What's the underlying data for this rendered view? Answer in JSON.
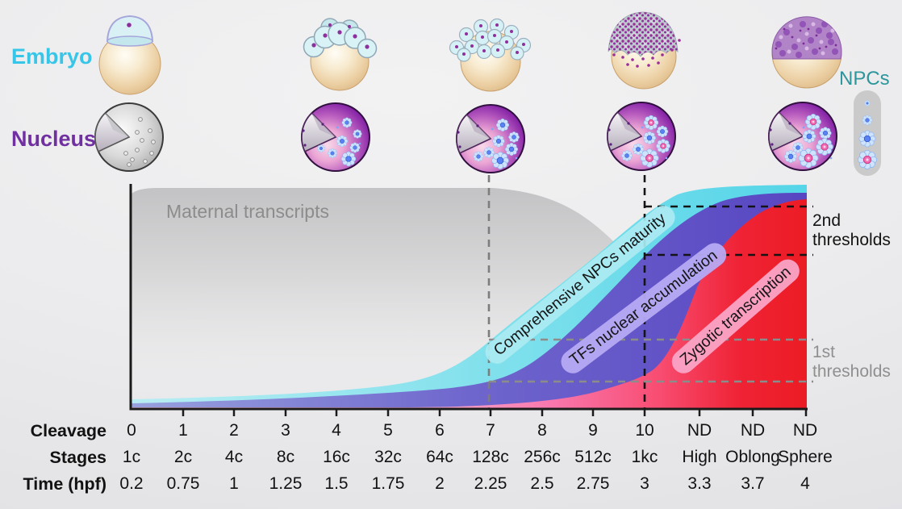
{
  "side_labels": {
    "embryo": "Embryo",
    "nucleus": "Nucleus",
    "npcs": "NPCs"
  },
  "curves": {
    "maternal": {
      "label": "Maternal transcripts",
      "text_color": "#8c8c8c"
    },
    "npc_maturity": {
      "label": "Comprehensive NPCs maturity",
      "band_color": "#55d5e8",
      "pill_color": "#abebf2"
    },
    "tfs": {
      "label": "TFs nuclear accumulation",
      "band_color": "#5846c2",
      "pill_color": "#b6aaf4"
    },
    "zygotic": {
      "label": "Zygotic transcription",
      "band_color": "#ec1c24",
      "pill_color": "#faa6c7"
    }
  },
  "annotations": {
    "second_thresholds": "2nd thresholds",
    "first_thresholds": "1st thresholds"
  },
  "timeline": {
    "row_labels": {
      "cleavage": "Cleavage",
      "stages": "Stages",
      "time_hpf": "Time (hpf)"
    },
    "cleavage": [
      "0",
      "1",
      "2",
      "3",
      "4",
      "5",
      "6",
      "7",
      "8",
      "9",
      "10",
      "ND",
      "ND",
      "ND"
    ],
    "stages": [
      "1c",
      "2c",
      "4c",
      "8c",
      "16c",
      "32c",
      "64c",
      "128c",
      "256c",
      "512c",
      "1kc",
      "High",
      "Oblong",
      "Sphere"
    ],
    "time_hpf": [
      "0.2",
      "0.75",
      "1",
      "1.25",
      "1.5",
      "1.75",
      "2",
      "2.25",
      "2.5",
      "2.75",
      "3",
      "3.3",
      "3.7",
      "4"
    ]
  },
  "chart_data": {
    "type": "area",
    "x_axis": {
      "categories_cleavage": [
        "0",
        "1",
        "2",
        "3",
        "4",
        "5",
        "6",
        "7",
        "8",
        "9",
        "10",
        "ND",
        "ND",
        "ND"
      ],
      "categories_stages": [
        "1c",
        "2c",
        "4c",
        "8c",
        "16c",
        "32c",
        "64c",
        "128c",
        "256c",
        "512c",
        "1kc",
        "High",
        "Oblong",
        "Sphere"
      ],
      "time_hpf": [
        0.2,
        0.75,
        1,
        1.25,
        1.5,
        1.75,
        2,
        2.25,
        2.5,
        2.75,
        3,
        3.3,
        3.7,
        4
      ]
    },
    "series": [
      {
        "name": "Maternal transcripts",
        "shape": "high plateau from 1c, declining after 64c-128c"
      },
      {
        "name": "Comprehensive NPCs maturity",
        "shape": "earliest sigmoid rise; crosses 1st threshold at 128c, 2nd threshold at 1kc; plateau by High"
      },
      {
        "name": "TFs nuclear accumulation",
        "shape": "sigmoid rise delayed after NPC maturity; thresholds at 128c and 1kc"
      },
      {
        "name": "Zygotic transcription",
        "shape": "latest sigmoid rise; onset near 1kc, maximal toward Sphere"
      }
    ],
    "guides": {
      "vertical_dashed": [
        "128c (gray)",
        "1kc (black)"
      ],
      "horizontal_dashed": [
        "1st thresholds: two gray lines from 128c",
        "2nd thresholds: two black lines from 1kc"
      ]
    },
    "legend": {
      "npcs_label": "NPCs",
      "levels": "4 NPC maturity levels, small to large"
    }
  },
  "icons": {
    "embryo_stages": [
      "1c",
      "16c",
      "128c",
      "1kc",
      "Sphere"
    ],
    "nucleus_stages": [
      "1c",
      "16c",
      "128c",
      "1kc",
      "Sphere"
    ]
  }
}
